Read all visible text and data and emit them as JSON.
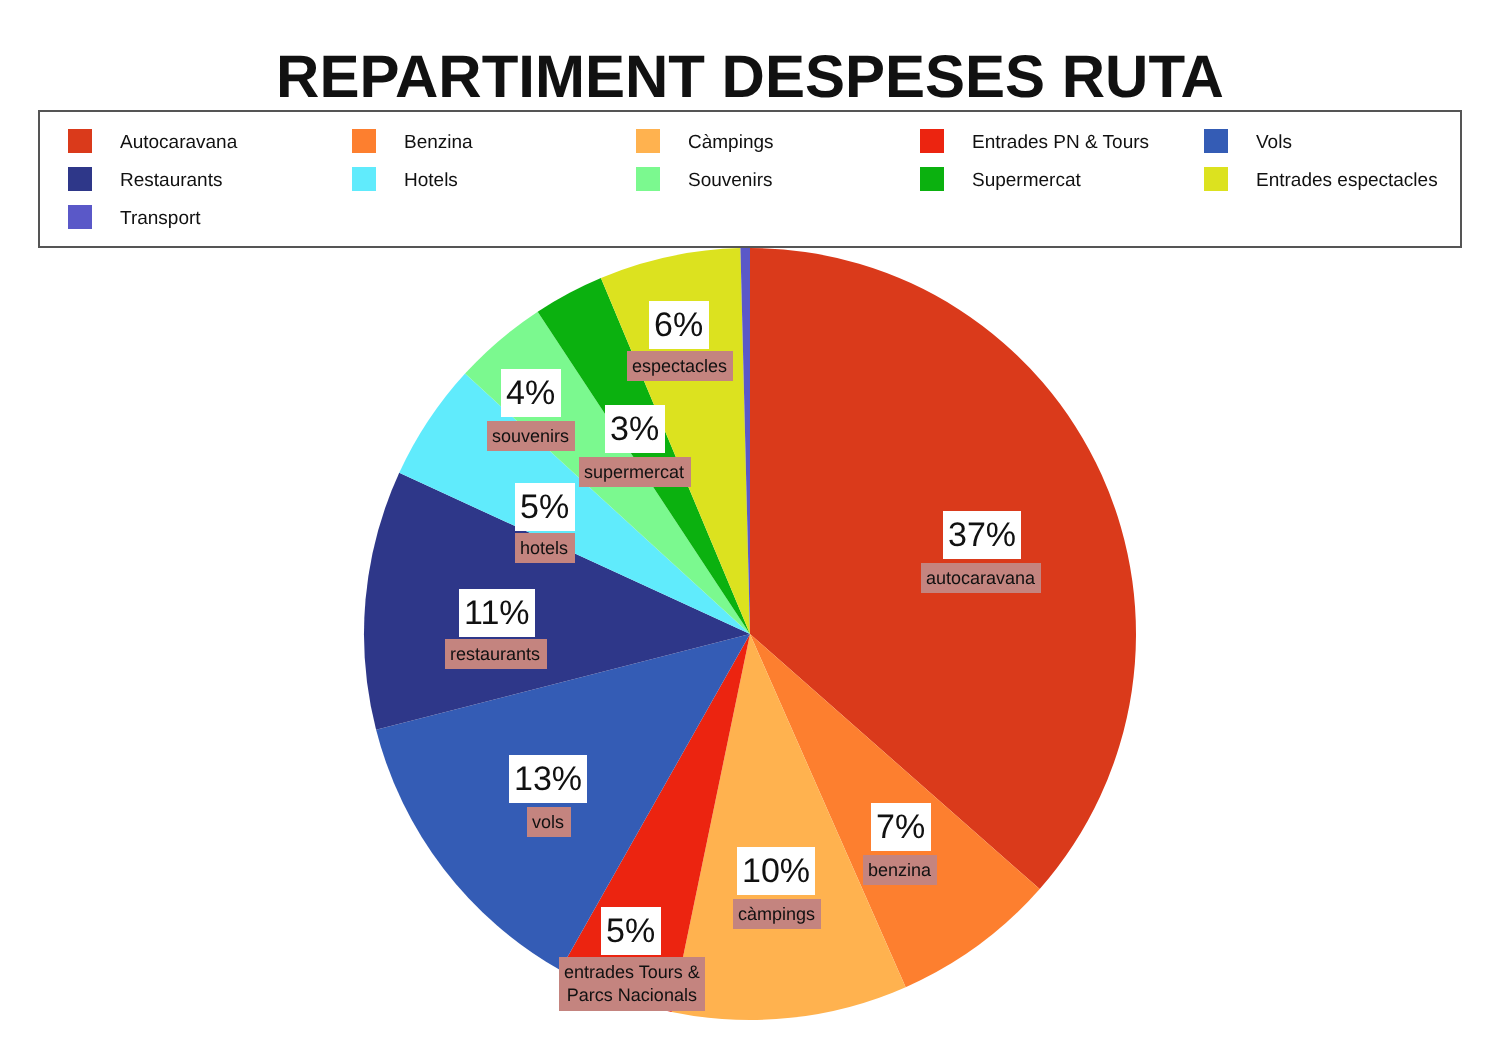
{
  "chart_data": {
    "type": "pie",
    "title": "REPARTIMENT DESPESES RUTA",
    "categories": [
      "Autocaravana",
      "Benzina",
      "Càmpings",
      "Entrades PN & Tours",
      "Vols",
      "Restaurants",
      "Hotels",
      "Souvenirs",
      "Supermercat",
      "Entrades espectacles",
      "Transport"
    ],
    "values": [
      37,
      7,
      10,
      5,
      13,
      11,
      5,
      4,
      3,
      6,
      0.4
    ],
    "colors": [
      "#da3a1b",
      "#fd7f2f",
      "#ffb24f",
      "#ec2410",
      "#345cb5",
      "#2e3789",
      "#60ebfc",
      "#7bf98f",
      "#0bb10f",
      "#dce21f",
      "#5a58c8"
    ],
    "value_labels": [
      "37%\nautocaravana",
      "7%\nbenzina",
      "10%\ncàmpings",
      "5%\nentrades Tours &\nParcs Nacionals",
      "13%\nvols",
      "11%\nrestaurants",
      "5%\nhotels",
      "4%\nsouvenirs",
      "3%\nsupermercat",
      "6%\nespectacles",
      null
    ],
    "legend": "top"
  }
}
